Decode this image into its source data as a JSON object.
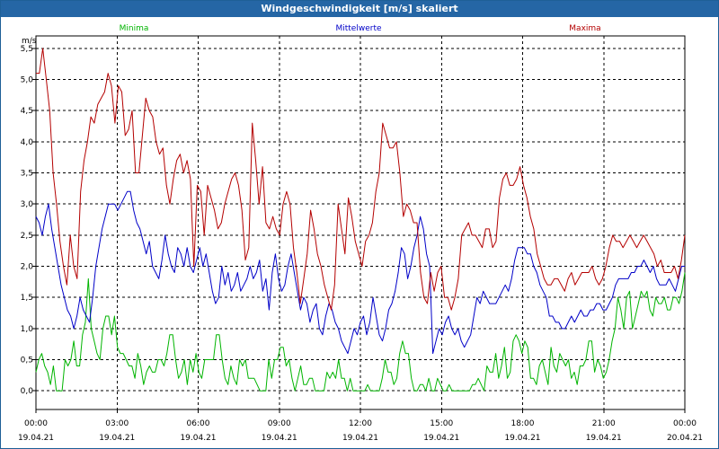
{
  "window": {
    "title": "Windgeschwindigkeit [m/s] skaliert"
  },
  "chart_data": {
    "type": "line",
    "title": "Windgeschwindigkeit [m/s] skaliert",
    "ylabel": "m/s",
    "xlabel": "",
    "ylim": [
      -0.3,
      5.7
    ],
    "xlim": [
      0,
      24
    ],
    "grid": true,
    "legend": "top",
    "x_tick_labels": [
      {
        "time": "00:00",
        "date": "19.04.21"
      },
      {
        "time": "03:00",
        "date": "19.04.21"
      },
      {
        "time": "06:00",
        "date": "19.04.21"
      },
      {
        "time": "09:00",
        "date": "19.04.21"
      },
      {
        "time": "12:00",
        "date": "19.04.21"
      },
      {
        "time": "15:00",
        "date": "19.04.21"
      },
      {
        "time": "18:00",
        "date": "19.04.21"
      },
      {
        "time": "21:00",
        "date": "19.04.21"
      },
      {
        "time": "00:00",
        "date": "20.04.21"
      }
    ],
    "y_ticks": [
      "0,0",
      "0,5",
      "1,0",
      "1,5",
      "2,0",
      "2,5",
      "3,0",
      "3,5",
      "4,0",
      "4,5",
      "5,0",
      "5,5"
    ],
    "series": [
      {
        "name": "Minima",
        "color": "#00b400",
        "values": [
          0.3,
          0.5,
          0.6,
          0.4,
          0.3,
          0.1,
          0.4,
          0.0,
          0.0,
          0.0,
          0.5,
          0.4,
          0.5,
          0.8,
          0.4,
          0.4,
          0.9,
          1.1,
          1.8,
          1.0,
          0.8,
          0.6,
          0.5,
          1.0,
          1.2,
          1.2,
          0.9,
          1.2,
          0.7,
          0.6,
          0.6,
          0.5,
          0.4,
          0.4,
          0.2,
          0.6,
          0.4,
          0.1,
          0.3,
          0.4,
          0.3,
          0.3,
          0.5,
          0.5,
          0.4,
          0.6,
          0.9,
          0.9,
          0.5,
          0.2,
          0.3,
          0.5,
          0.1,
          0.5,
          0.3,
          0.6,
          0.3,
          0.2,
          0.5,
          0.5,
          0.5,
          0.5,
          0.9,
          0.9,
          0.5,
          0.2,
          0.1,
          0.4,
          0.2,
          0.1,
          0.5,
          0.4,
          0.5,
          0.2,
          0.2,
          0.2,
          0.1,
          0.0,
          0.0,
          0.0,
          0.5,
          0.2,
          0.5,
          0.5,
          0.7,
          0.7,
          0.4,
          0.5,
          0.2,
          0.0,
          0.2,
          0.4,
          0.1,
          0.1,
          0.2,
          0.2,
          0.0,
          0.0,
          0.0,
          0.0,
          0.3,
          0.2,
          0.3,
          0.2,
          0.5,
          0.2,
          0.2,
          0.0,
          0.2,
          0.0,
          0.0,
          0.0,
          0.0,
          0.0,
          0.1,
          0.0,
          0.0,
          0.0,
          0.0,
          0.2,
          0.5,
          0.3,
          0.3,
          0.1,
          0.2,
          0.6,
          0.8,
          0.6,
          0.6,
          0.2,
          0.0,
          0.0,
          0.1,
          0.1,
          0.0,
          0.2,
          0.0,
          0.0,
          0.2,
          0.1,
          0.0,
          0.0,
          0.1,
          0.0,
          0.0,
          0.0,
          0.0,
          0.0,
          0.0,
          0.0,
          0.1,
          0.1,
          0.2,
          0.1,
          0.0,
          0.4,
          0.3,
          0.3,
          0.6,
          0.2,
          0.4,
          0.7,
          0.2,
          0.3,
          0.8,
          0.9,
          0.8,
          0.6,
          0.8,
          0.7,
          0.2,
          0.2,
          0.1,
          0.4,
          0.5,
          0.3,
          0.1,
          0.7,
          0.4,
          0.3,
          0.6,
          0.5,
          0.4,
          0.5,
          0.2,
          0.3,
          0.1,
          0.4,
          0.4,
          0.5,
          0.8,
          0.8,
          0.3,
          0.5,
          0.4,
          0.2,
          0.3,
          0.5,
          0.8,
          1.0,
          1.5,
          1.3,
          1.0,
          1.5,
          1.6,
          1.0,
          1.2,
          1.4,
          1.6,
          1.5,
          1.6,
          1.3,
          1.2,
          1.5,
          1.4,
          1.4,
          1.5,
          1.3,
          1.3,
          1.5,
          1.5,
          1.4,
          1.6,
          1.9
        ]
      },
      {
        "name": "Mittelwerte",
        "color": "#0000c8",
        "values": [
          2.8,
          2.7,
          2.5,
          2.8,
          3.0,
          2.6,
          2.3,
          2.0,
          1.7,
          1.5,
          1.3,
          1.2,
          1.0,
          1.2,
          1.5,
          1.3,
          1.2,
          1.1,
          1.5,
          2.0,
          2.3,
          2.6,
          2.8,
          3.0,
          3.0,
          3.0,
          2.9,
          3.0,
          3.1,
          3.2,
          3.2,
          2.9,
          2.7,
          2.6,
          2.4,
          2.2,
          2.4,
          2.0,
          1.9,
          1.8,
          2.1,
          2.5,
          2.2,
          2.0,
          1.9,
          2.3,
          2.2,
          2.0,
          2.3,
          2.0,
          1.9,
          2.1,
          2.3,
          2.0,
          2.2,
          1.9,
          1.6,
          1.4,
          1.5,
          2.0,
          1.7,
          1.9,
          1.6,
          1.7,
          1.9,
          1.6,
          1.7,
          1.8,
          2.0,
          1.8,
          1.9,
          2.1,
          1.6,
          1.8,
          1.3,
          1.9,
          2.2,
          1.8,
          1.6,
          1.7,
          2.0,
          2.2,
          1.9,
          1.6,
          1.3,
          1.5,
          1.4,
          1.1,
          1.3,
          1.4,
          1.0,
          0.9,
          1.2,
          1.4,
          1.3,
          1.1,
          1.0,
          0.8,
          0.7,
          0.6,
          0.8,
          1.0,
          0.9,
          1.1,
          1.2,
          0.9,
          1.1,
          1.5,
          1.2,
          0.9,
          0.8,
          1.0,
          1.3,
          1.4,
          1.6,
          1.9,
          2.3,
          2.2,
          1.8,
          2.0,
          2.3,
          2.5,
          2.8,
          2.6,
          2.2,
          2.0,
          0.6,
          0.8,
          1.0,
          0.9,
          1.1,
          1.2,
          1.0,
          0.9,
          1.0,
          0.8,
          0.7,
          0.8,
          0.9,
          1.2,
          1.5,
          1.4,
          1.6,
          1.5,
          1.4,
          1.4,
          1.4,
          1.5,
          1.6,
          1.7,
          1.6,
          1.8,
          2.1,
          2.3,
          2.3,
          2.3,
          2.2,
          2.2,
          2.0,
          1.9,
          1.7,
          1.6,
          1.5,
          1.2,
          1.2,
          1.1,
          1.1,
          1.0,
          1.0,
          1.1,
          1.2,
          1.1,
          1.2,
          1.3,
          1.2,
          1.2,
          1.3,
          1.3,
          1.4,
          1.4,
          1.3,
          1.3,
          1.4,
          1.5,
          1.7,
          1.8,
          1.8,
          1.8,
          1.8,
          1.9,
          1.9,
          2.0,
          2.0,
          2.1,
          2.0,
          1.9,
          2.0,
          1.8,
          1.7,
          1.7,
          1.7,
          1.8,
          1.7,
          1.6,
          1.8,
          2.0,
          2.0
        ]
      },
      {
        "name": "Maxima",
        "color": "#b40000",
        "values": [
          5.1,
          5.1,
          5.5,
          5.0,
          4.5,
          3.5,
          3.0,
          2.4,
          2.0,
          1.7,
          2.5,
          2.0,
          1.8,
          3.2,
          3.7,
          4.0,
          4.4,
          4.3,
          4.6,
          4.7,
          4.8,
          5.1,
          4.9,
          4.3,
          4.9,
          4.8,
          4.1,
          4.2,
          4.5,
          3.5,
          3.5,
          4.1,
          4.7,
          4.5,
          4.4,
          4.0,
          3.8,
          3.9,
          3.3,
          3.0,
          3.4,
          3.7,
          3.8,
          3.5,
          3.7,
          3.4,
          2.0,
          3.3,
          3.2,
          2.5,
          3.3,
          3.1,
          2.9,
          2.6,
          2.7,
          3.0,
          3.2,
          3.4,
          3.5,
          3.3,
          2.9,
          2.1,
          2.3,
          4.3,
          3.7,
          3.0,
          3.6,
          2.7,
          2.6,
          2.8,
          2.6,
          2.5,
          3.0,
          3.2,
          3.0,
          2.3,
          1.9,
          1.4,
          1.8,
          2.2,
          2.9,
          2.6,
          2.2,
          2.0,
          1.7,
          1.5,
          1.3,
          1.7,
          3.0,
          2.6,
          2.2,
          3.1,
          2.8,
          2.4,
          2.2,
          2.0,
          2.4,
          2.5,
          2.7,
          3.2,
          3.5,
          4.3,
          4.1,
          3.9,
          3.9,
          4.0,
          3.5,
          2.8,
          3.0,
          2.9,
          2.7,
          2.7,
          1.9,
          1.5,
          1.4,
          1.9,
          1.6,
          1.9,
          2.0,
          1.5,
          1.5,
          1.3,
          1.5,
          1.8,
          2.5,
          2.6,
          2.7,
          2.5,
          2.5,
          2.4,
          2.3,
          2.6,
          2.6,
          2.3,
          2.4,
          3.1,
          3.4,
          3.5,
          3.3,
          3.3,
          3.4,
          3.6,
          3.3,
          3.1,
          2.8,
          2.6,
          2.2,
          2.0,
          1.8,
          1.7,
          1.7,
          1.8,
          1.8,
          1.7,
          1.6,
          1.8,
          1.9,
          1.7,
          1.8,
          1.9,
          1.9,
          1.9,
          2.0,
          1.8,
          1.7,
          1.8,
          2.0,
          2.3,
          2.5,
          2.4,
          2.4,
          2.3,
          2.4,
          2.5,
          2.4,
          2.3,
          2.4,
          2.5,
          2.4,
          2.3,
          2.2,
          2.0,
          2.1,
          1.9,
          1.9,
          1.9,
          2.0,
          1.8,
          2.1,
          2.5
        ]
      }
    ]
  }
}
